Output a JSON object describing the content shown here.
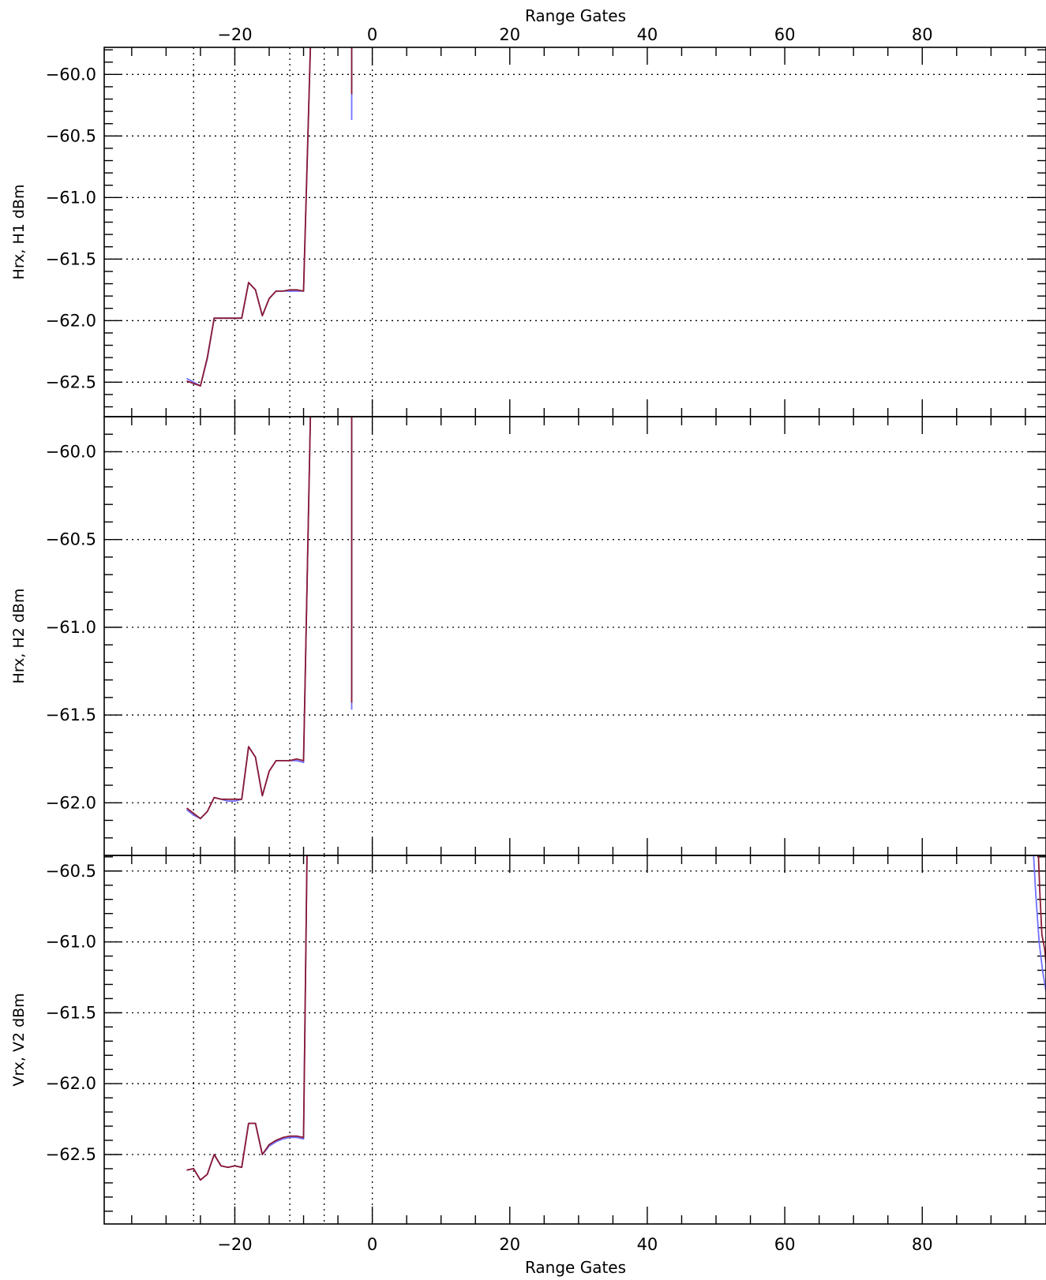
{
  "chart_data": {
    "type": "line",
    "x_axis": {
      "label": "Range Gates",
      "range": [
        -39,
        98
      ],
      "ticks": [
        -20,
        0,
        20,
        40,
        60,
        80
      ],
      "tick_labels": [
        "−20",
        "0",
        "20",
        "40",
        "60",
        "80"
      ],
      "minor_step": 5
    },
    "vertical_reference_lines": [
      -26,
      -20,
      -12,
      -7,
      0
    ],
    "grid": "dotted",
    "series_colors": [
      "#7070ff",
      "#8b1a35"
    ],
    "panels": [
      {
        "ylabel": "Hrx, H1 dBm",
        "ylim": [
          -62.78,
          -59.78
        ],
        "yticks": [
          -60.0,
          -60.5,
          -61.0,
          -61.5,
          -62.0,
          -62.5
        ],
        "ytick_labels": [
          "−60.0",
          "−60.5",
          "−61.0",
          "−61.5",
          "−62.0",
          "−62.5"
        ],
        "y_minor_step": 0.1,
        "series": [
          {
            "x": [
              -27,
              -26,
              -25,
              -24,
              -23,
              -22,
              -21,
              -20,
              -19,
              -18,
              -17,
              -16,
              -15,
              -14,
              -13,
              -12,
              -11,
              -10,
              -9
            ],
            "y": [
              -62.47,
              -62.5,
              -62.53,
              -62.31,
              -61.98,
              -61.98,
              -61.98,
              -61.98,
              -61.98,
              -61.69,
              -61.75,
              -61.96,
              -61.82,
              -61.76,
              -61.76,
              -61.76,
              -61.76,
              -61.76,
              -59.78
            ]
          },
          {
            "x": [
              -27,
              -26,
              -25,
              -24,
              -23,
              -22,
              -21,
              -20,
              -19,
              -18,
              -17,
              -16,
              -15,
              -14,
              -13,
              -12,
              -11,
              -10,
              -9
            ],
            "y": [
              -62.49,
              -62.51,
              -62.53,
              -62.3,
              -61.98,
              -61.98,
              -61.98,
              -61.98,
              -61.98,
              -61.69,
              -61.75,
              -61.96,
              -61.82,
              -61.76,
              -61.76,
              -61.75,
              -61.75,
              -61.76,
              -59.78
            ]
          },
          {
            "x": [
              -3,
              -3
            ],
            "y": [
              -59.78,
              -60.37
            ]
          },
          {
            "x": [
              -3,
              -3
            ],
            "y": [
              -59.78,
              -60.16
            ]
          }
        ]
      },
      {
        "ylabel": "Hrx, H2 dBm",
        "ylim": [
          -62.3,
          -59.8
        ],
        "yticks": [
          -60.0,
          -60.5,
          -61.0,
          -61.5,
          -62.0
        ],
        "ytick_labels": [
          "−60.0",
          "−60.5",
          "−61.0",
          "−61.5",
          "−62.0"
        ],
        "y_minor_step": 0.1,
        "series": [
          {
            "x": [
              -27,
              -26,
              -25,
              -24,
              -23,
              -22,
              -21,
              -20,
              -19,
              -18,
              -17,
              -16,
              -15,
              -14,
              -13,
              -12,
              -11,
              -10,
              -9
            ],
            "y": [
              -62.04,
              -62.07,
              -62.09,
              -62.05,
              -61.97,
              -61.98,
              -61.99,
              -61.99,
              -61.98,
              -61.68,
              -61.74,
              -61.96,
              -61.82,
              -61.76,
              -61.76,
              -61.76,
              -61.76,
              -61.77,
              -59.8
            ]
          },
          {
            "x": [
              -27,
              -26,
              -25,
              -24,
              -23,
              -22,
              -21,
              -20,
              -19,
              -18,
              -17,
              -16,
              -15,
              -14,
              -13,
              -12,
              -11,
              -10,
              -9
            ],
            "y": [
              -62.03,
              -62.06,
              -62.09,
              -62.05,
              -61.97,
              -61.98,
              -61.98,
              -61.98,
              -61.98,
              -61.68,
              -61.74,
              -61.96,
              -61.82,
              -61.76,
              -61.76,
              -61.76,
              -61.75,
              -61.76,
              -59.8
            ]
          },
          {
            "x": [
              -3,
              -3
            ],
            "y": [
              -59.8,
              -61.47
            ]
          },
          {
            "x": [
              -3,
              -3
            ],
            "y": [
              -59.8,
              -61.43
            ]
          }
        ]
      },
      {
        "ylabel": "Vrx, V2 dBm",
        "ylim": [
          -62.99,
          -60.39
        ],
        "yticks": [
          -60.5,
          -61.0,
          -61.5,
          -62.0,
          -62.5
        ],
        "ytick_labels": [
          "−60.5",
          "−61.0",
          "−61.5",
          "−62.0",
          "−62.5"
        ],
        "y_minor_step": 0.1,
        "series": [
          {
            "x": [
              -27,
              -26,
              -25,
              -24,
              -23,
              -22,
              -21,
              -20,
              -19,
              -18,
              -17,
              -16,
              -15,
              -14,
              -13,
              -12,
              -11,
              -10,
              -9.5
            ],
            "y": [
              -62.61,
              -62.6,
              -62.68,
              -62.64,
              -62.5,
              -62.58,
              -62.59,
              -62.58,
              -62.59,
              -62.28,
              -62.28,
              -62.5,
              -62.44,
              -62.41,
              -62.39,
              -62.38,
              -62.38,
              -62.39,
              -60.39
            ]
          },
          {
            "x": [
              -27,
              -26,
              -25,
              -24,
              -23,
              -22,
              -21,
              -20,
              -19,
              -18,
              -17,
              -16,
              -15,
              -14,
              -13,
              -12,
              -11,
              -10,
              -9.5
            ],
            "y": [
              -62.61,
              -62.6,
              -62.68,
              -62.64,
              -62.5,
              -62.58,
              -62.59,
              -62.58,
              -62.59,
              -62.28,
              -62.28,
              -62.5,
              -62.43,
              -62.4,
              -62.38,
              -62.37,
              -62.37,
              -62.38,
              -60.39
            ]
          },
          {
            "x": [
              96.2,
              96.5,
              97.0,
              97.5,
              98.0
            ],
            "y": [
              -60.39,
              -60.65,
              -61.0,
              -61.2,
              -61.35
            ]
          },
          {
            "x": [
              96.9,
              97.1,
              97.4,
              97.8,
              98.0
            ],
            "y": [
              -60.39,
              -60.65,
              -60.95,
              -61.05,
              -61.15
            ]
          }
        ]
      }
    ]
  }
}
